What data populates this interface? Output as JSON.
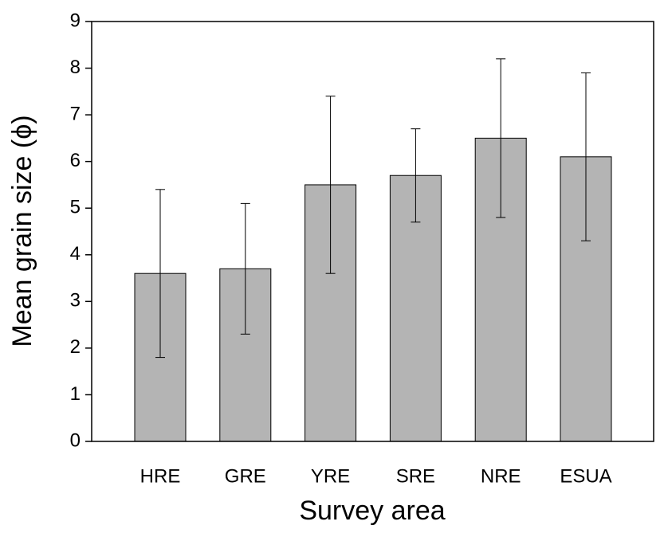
{
  "chart_data": {
    "type": "bar",
    "x_label": "Survey area",
    "y_label": "Mean grain size (ϕ)",
    "categories": [
      "HRE",
      "GRE",
      "YRE",
      "SRE",
      "NRE",
      "ESUA"
    ],
    "values": [
      3.6,
      3.7,
      5.5,
      5.7,
      6.5,
      6.1
    ],
    "errors": [
      1.8,
      1.4,
      1.9,
      1.0,
      1.7,
      1.8
    ],
    "color": "#b4b4b4",
    "ylim": [
      0,
      9
    ],
    "yticks": [
      0,
      1,
      2,
      3,
      4,
      5,
      6,
      7,
      8,
      9
    ]
  }
}
